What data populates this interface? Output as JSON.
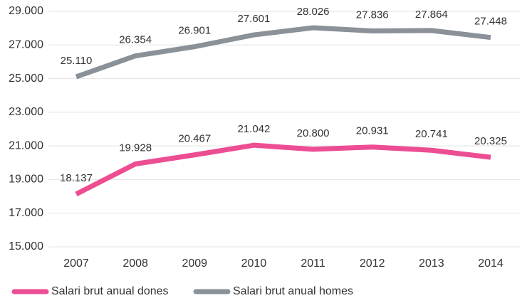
{
  "chart_data": {
    "type": "line",
    "categories": [
      "2007",
      "2008",
      "2009",
      "2010",
      "2011",
      "2012",
      "2013",
      "2014"
    ],
    "series": [
      {
        "name": "Salari brut anual dones",
        "color": "#ec4d93",
        "values": [
          18137,
          19928,
          20467,
          21042,
          20800,
          20931,
          20741,
          20325
        ],
        "value_labels": [
          "18.137",
          "19.928",
          "20.467",
          "21.042",
          "20.800",
          "20.931",
          "20.741",
          "20.325"
        ]
      },
      {
        "name": "Salari brut anual homes",
        "color": "#8b9199",
        "values": [
          25110,
          26354,
          26901,
          27601,
          28026,
          27836,
          27864,
          27448
        ],
        "value_labels": [
          "25.110",
          "26.354",
          "26.901",
          "27.601",
          "28.026",
          "27.836",
          "27.864",
          "27.448"
        ]
      }
    ],
    "ylim": [
      15000,
      29000
    ],
    "yticks": [
      {
        "value": 15000,
        "label": "15.000"
      },
      {
        "value": 17000,
        "label": "17.000"
      },
      {
        "value": 19000,
        "label": "19.000"
      },
      {
        "value": 21000,
        "label": "21.000"
      },
      {
        "value": 23000,
        "label": "23.000"
      },
      {
        "value": 25000,
        "label": "25.000"
      },
      {
        "value": 27000,
        "label": "27.000"
      },
      {
        "value": 29000,
        "label": "29.000"
      }
    ],
    "grid": true,
    "legend": "bottom"
  }
}
